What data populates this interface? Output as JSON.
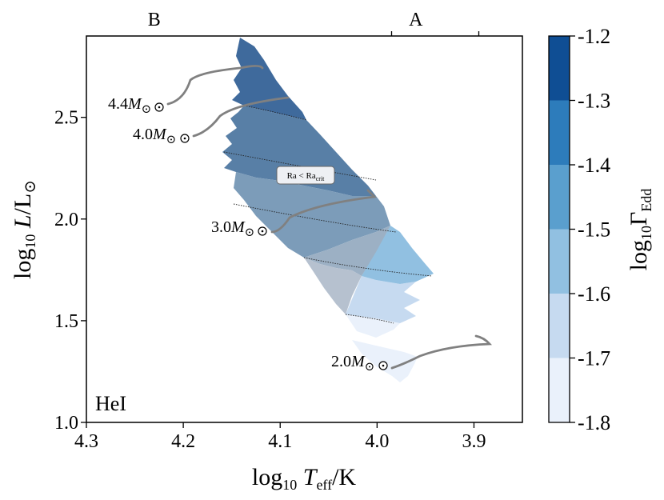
{
  "chart_data": {
    "type": "heatmap",
    "panel_label": "HeI",
    "xlabel": "log10 Teff/K",
    "ylabel": "log10 L/L⊙",
    "x_axis_reversed": true,
    "xlim": [
      4.3,
      3.85
    ],
    "ylim": [
      1.0,
      2.9
    ],
    "x_ticks": [
      "4.3",
      "4.2",
      "4.1",
      "4.0",
      "3.9"
    ],
    "x_tick_values": [
      4.3,
      4.2,
      4.1,
      4.0,
      3.9
    ],
    "y_ticks": [
      "1.0",
      "1.5",
      "2.0",
      "2.5"
    ],
    "y_tick_values": [
      1.0,
      1.5,
      2.0,
      2.5
    ],
    "top_axis": {
      "labels": [
        "B",
        "A"
      ],
      "label_positions": [
        4.23,
        3.96
      ],
      "tick_values": [
        3.985,
        3.895
      ]
    },
    "colorbar": {
      "label": "log10 ΓEdd",
      "ticks": [
        "-1.2",
        "-1.3",
        "-1.4",
        "-1.5",
        "-1.6",
        "-1.7",
        "-1.8"
      ],
      "tick_values": [
        -1.2,
        -1.3,
        -1.4,
        -1.5,
        -1.6,
        -1.7,
        -1.8
      ],
      "levels": [
        {
          "range": [
            -1.8,
            -1.7
          ],
          "color": "#eaf1fb"
        },
        {
          "range": [
            -1.7,
            -1.6
          ],
          "color": "#c6daf0"
        },
        {
          "range": [
            -1.6,
            -1.5
          ],
          "color": "#91c0e1"
        },
        {
          "range": [
            -1.5,
            -1.4
          ],
          "color": "#5a9fce"
        },
        {
          "range": [
            -1.4,
            -1.3
          ],
          "color": "#2d7cbb"
        },
        {
          "range": [
            -1.3,
            -1.2
          ],
          "color": "#0f4e94"
        }
      ]
    },
    "convective_zone": {
      "annotation": "Ra < Racrit",
      "alpha_region_colors": [
        "#3f6a9c",
        "#587fa6",
        "#7c9cb9",
        "#9cb0c4",
        "#b6c1cf"
      ]
    },
    "tracks": [
      {
        "label": "4.4M⊙",
        "mass": 4.4,
        "color": "#808080"
      },
      {
        "label": "4.0M⊙",
        "mass": 4.0,
        "color": "#808080"
      },
      {
        "label": "3.0M⊙",
        "mass": 3.0,
        "color": "#808080"
      },
      {
        "label": "2.0M⊙",
        "mass": 2.0,
        "color": "#808080"
      }
    ]
  }
}
